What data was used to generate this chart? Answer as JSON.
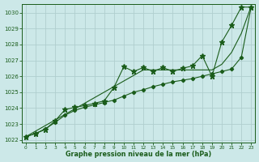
{
  "xlabel": "Graphe pression niveau de la mer (hPa)",
  "ylim": [
    1021.85,
    1030.55
  ],
  "xlim": [
    -0.4,
    23.4
  ],
  "bg_color": "#cce8e8",
  "grid_color": "#b0cece",
  "line_color": "#1a5c1a",
  "x": [
    0,
    1,
    2,
    3,
    4,
    5,
    6,
    7,
    8,
    9,
    10,
    11,
    12,
    13,
    14,
    15,
    16,
    17,
    18,
    19,
    20,
    21,
    22,
    23
  ],
  "line_straight": [
    1022.2,
    1022.55,
    1022.9,
    1023.25,
    1023.6,
    1023.95,
    1024.3,
    1024.65,
    1025.0,
    1025.35,
    1025.7,
    1026.05,
    1026.4,
    1026.4,
    1026.4,
    1026.4,
    1026.4,
    1026.4,
    1026.4,
    1026.4,
    1026.75,
    1027.5,
    1028.7,
    1030.4
  ],
  "line_smooth": [
    1022.2,
    1022.4,
    1022.7,
    1023.1,
    1023.55,
    1023.85,
    1024.05,
    1024.2,
    1024.35,
    1024.5,
    1024.75,
    1025.0,
    1025.15,
    1025.35,
    1025.5,
    1025.65,
    1025.75,
    1025.85,
    1026.0,
    1026.15,
    1026.3,
    1026.45,
    1027.2,
    1030.35
  ],
  "line_jagged": [
    1022.2,
    1022.4,
    1022.65,
    1023.2,
    1023.9,
    1024.05,
    1024.15,
    1024.3,
    1024.45,
    1025.3,
    1026.6,
    1026.3,
    1026.55,
    1026.3,
    1026.55,
    1026.3,
    1026.5,
    1026.65,
    1027.3,
    1026.0,
    1028.15,
    1029.2,
    1030.35,
    1030.35
  ],
  "yticks": [
    1022,
    1023,
    1024,
    1025,
    1026,
    1027,
    1028,
    1029,
    1030
  ],
  "xticks": [
    0,
    1,
    2,
    3,
    4,
    5,
    6,
    7,
    8,
    9,
    10,
    11,
    12,
    13,
    14,
    15,
    16,
    17,
    18,
    19,
    20,
    21,
    22,
    23
  ]
}
